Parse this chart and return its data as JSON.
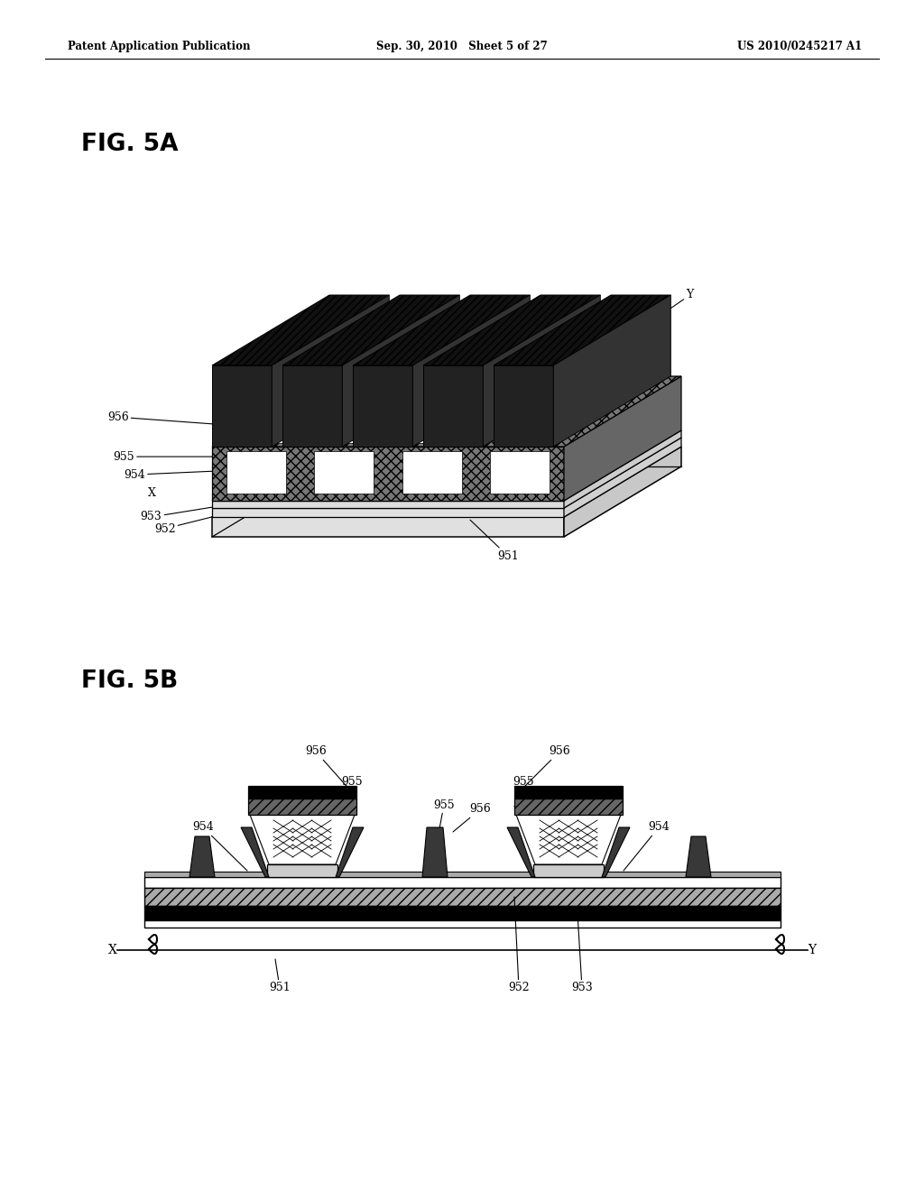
{
  "bg_color": "#ffffff",
  "header_left": "Patent Application Publication",
  "header_mid": "Sep. 30, 2010   Sheet 5 of 27",
  "header_right": "US 2010/0245217 A1",
  "fig5a_label": "FIG. 5A",
  "fig5b_label": "FIG. 5B"
}
